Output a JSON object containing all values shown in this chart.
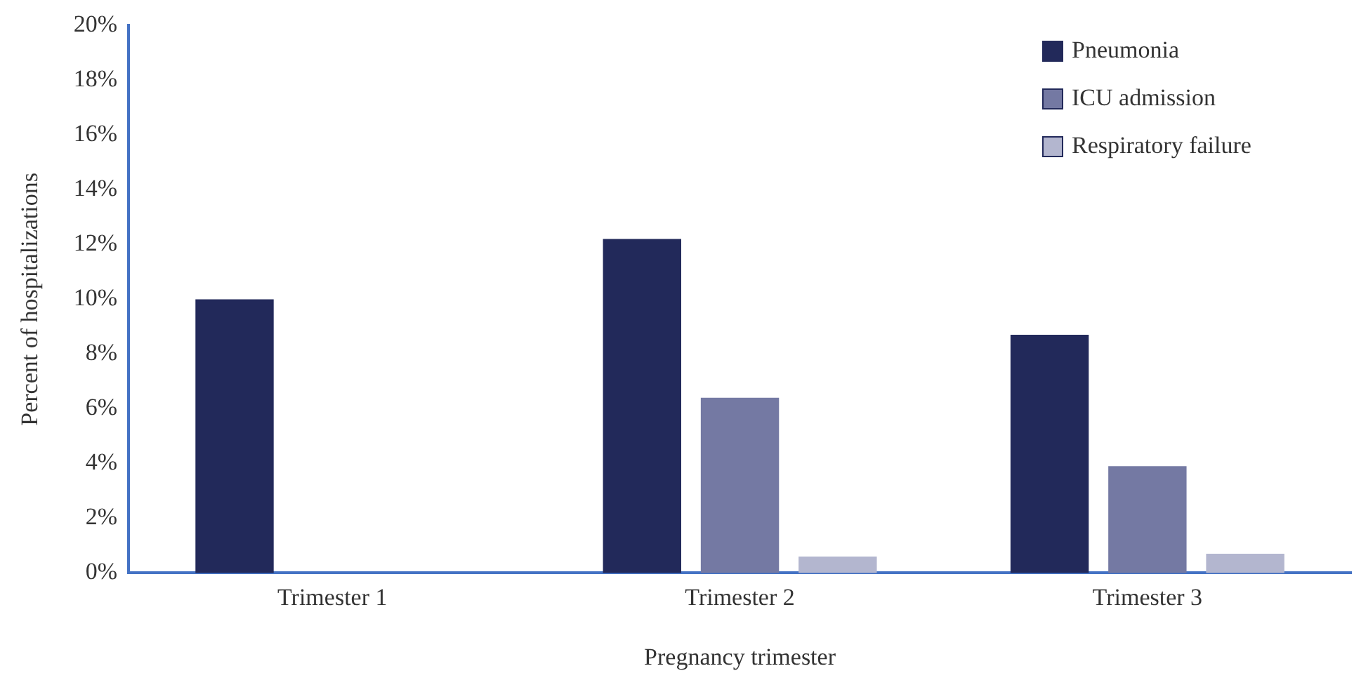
{
  "chart_data": {
    "type": "bar",
    "xlabel": "Pregnancy trimester",
    "ylabel": "Percent of hospitalizations",
    "categories": [
      "Trimester 1",
      "Trimester 2",
      "Trimester 3"
    ],
    "series": [
      {
        "name": "Pneumonia",
        "color": "#22295a",
        "values": [
          10.0,
          12.2,
          8.7
        ]
      },
      {
        "name": "ICU admission",
        "color": "#7479a3",
        "values": [
          null,
          6.4,
          3.9
        ]
      },
      {
        "name": "Respiratory failure",
        "color": "#b3b6cf",
        "values": [
          null,
          0.6,
          0.7
        ]
      }
    ],
    "ylim": [
      0,
      20
    ],
    "yticks": [
      {
        "value": 0,
        "label": "0%"
      },
      {
        "value": 2,
        "label": "2%"
      },
      {
        "value": 4,
        "label": "4%"
      },
      {
        "value": 6,
        "label": "6%"
      },
      {
        "value": 8,
        "label": "8%"
      },
      {
        "value": 10,
        "label": "10%"
      },
      {
        "value": 12,
        "label": "12%"
      },
      {
        "value": 14,
        "label": "14%"
      },
      {
        "value": 16,
        "label": "16%"
      },
      {
        "value": 18,
        "label": "18%"
      },
      {
        "value": 20,
        "label": "20%"
      }
    ],
    "grid": false,
    "legend": "top right"
  }
}
